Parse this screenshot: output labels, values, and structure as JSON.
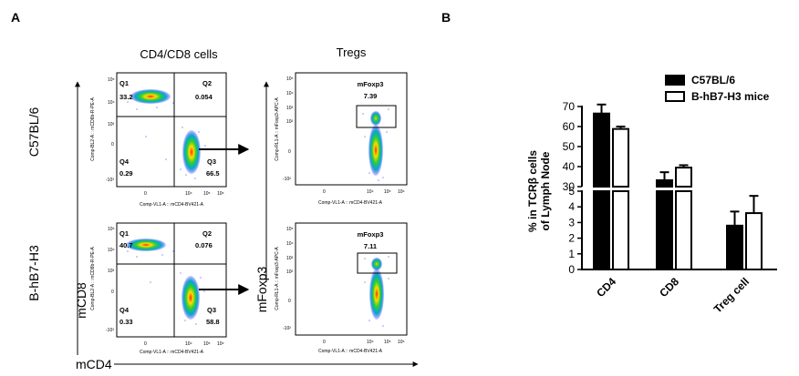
{
  "panel_a": {
    "label": "A",
    "col1_title": "CD4/CD8 cells",
    "col2_title": "Tregs",
    "row1_label": "C57BL/6",
    "row2_label": "B-hB7-H3",
    "y_axis_label": "mCD8",
    "y_axis_label2": "mFoxp3",
    "x_axis_label": "mCD4",
    "plots": [
      {
        "ylabel": "Comp-BL2-A :: mCD8b-R-PE-A",
        "xlabel": "Comp-VL1-A :: mCD4-BV421-A",
        "quadrants": {
          "Q1": "33.2",
          "Q2": "0.054",
          "Q3": "66.5",
          "Q4": "0.29"
        }
      },
      {
        "ylabel": "Comp-RL1-A :: mFoxp3-APC-A",
        "xlabel": "Comp-VL1-A :: mCD4-BV421-A",
        "gate_label": "mFoxp3",
        "gate_value": "7.39"
      },
      {
        "ylabel": "Comp-BL2-A :: mCD8b-R-PE-A",
        "xlabel": "Comp-VL1-A :: mCD4-BV421-A",
        "quadrants": {
          "Q1": "40.7",
          "Q2": "0.076",
          "Q3": "58.8",
          "Q4": "0.33"
        }
      },
      {
        "ylabel": "Comp-RL1-A :: mFoxp3-APC-A",
        "xlabel": "Comp-VL1-A :: mCD4-BV421-A",
        "gate_label": "mFoxp3",
        "gate_value": "7.11"
      }
    ]
  },
  "panel_b": {
    "label": "B"
  },
  "colors": {
    "c57": "#000000",
    "hb7": "#ffffff",
    "edge": "#000000"
  },
  "chart_data": {
    "type": "bar",
    "categories": [
      "CD4",
      "CD8",
      "Treg cell"
    ],
    "series": [
      {
        "name": "C57BL/6",
        "values": [
          66.5,
          33.2,
          2.8
        ],
        "errors": [
          4.5,
          4.0,
          0.9
        ]
      },
      {
        "name": "B-hB7-H3 mice",
        "values": [
          58.8,
          39.5,
          3.6
        ],
        "errors": [
          1.2,
          1.2,
          1.1
        ]
      }
    ],
    "ylabel": "% in TCRβ cells of Lymph Node",
    "ylim_low": [
      0,
      5
    ],
    "ylim_high": [
      30,
      70
    ],
    "yticks_low": [
      "0",
      "1",
      "2",
      "3",
      "4",
      "5"
    ],
    "yticks_high": [
      "30",
      "40",
      "50",
      "60",
      "70"
    ],
    "legend": "top-right",
    "axis_break": true
  }
}
